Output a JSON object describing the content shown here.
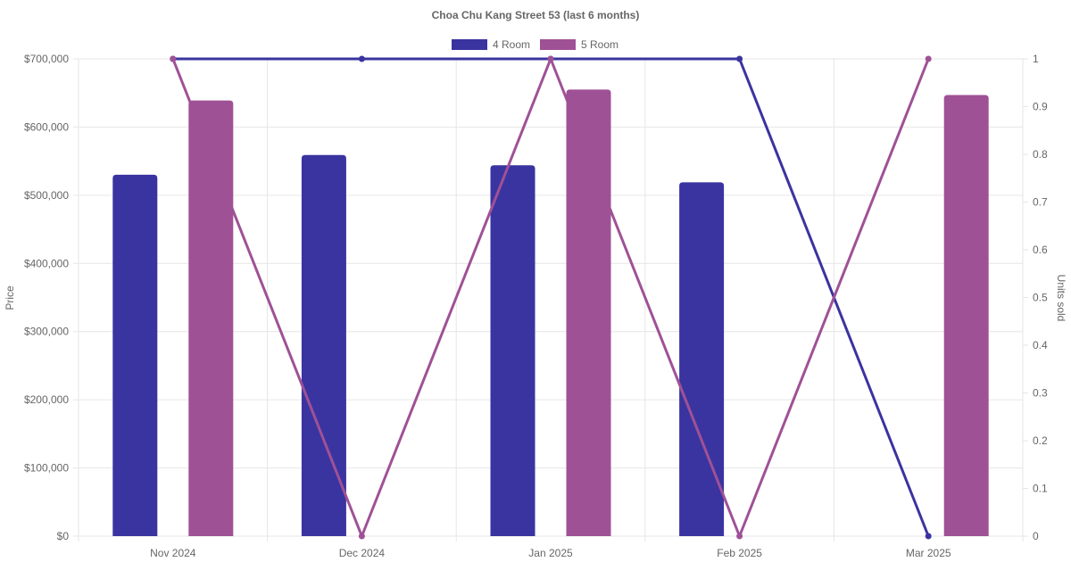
{
  "chart_data": {
    "type": "bar",
    "title": "Choa Chu Kang Street 53 (last 6 months)",
    "categories": [
      "Nov 2024",
      "Dec 2024",
      "Jan 2025",
      "Feb 2025",
      "Mar 2025"
    ],
    "y_left": {
      "label": "Price",
      "ylim": [
        0,
        700000
      ],
      "ticks": [
        "$0",
        "$100,000",
        "$200,000",
        "$300,000",
        "$400,000",
        "$500,000",
        "$600,000",
        "$700,000"
      ]
    },
    "y_right": {
      "label": "Units sold",
      "ylim": [
        0,
        1
      ],
      "ticks": [
        "0",
        "0.1",
        "0.2",
        "0.3",
        "0.4",
        "0.5",
        "0.6",
        "0.7",
        "0.8",
        "0.9",
        "1"
      ]
    },
    "series": [
      {
        "name": "4 Room",
        "color": "#3a34a0",
        "price": [
          530000,
          559000,
          544000,
          519000,
          null
        ],
        "units": [
          1,
          1,
          1,
          1,
          0
        ]
      },
      {
        "name": "5 Room",
        "color": "#9f5196",
        "price": [
          639000,
          null,
          655000,
          null,
          647000
        ],
        "units": [
          1,
          0,
          1,
          0,
          1
        ]
      }
    ],
    "legend": "top-center",
    "grid": true
  }
}
